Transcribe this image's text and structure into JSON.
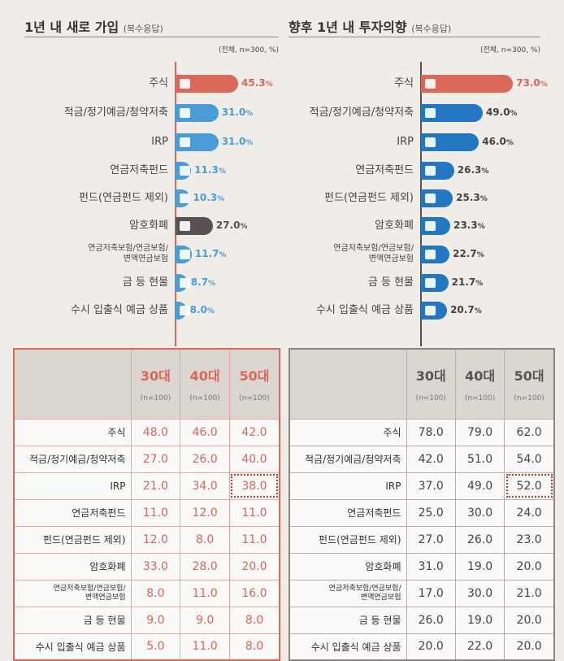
{
  "colors": {
    "red": "#d9675a",
    "blue": "#4a9bd6",
    "dark_blue": "#2377c0",
    "gray": "#5a5252"
  },
  "categories": [
    "주식",
    "적금/정기예금/청약저축",
    "IRP",
    "연금저축펀드",
    "펀드(연금펀드 제외)",
    "암호화폐",
    "연금저축보험/연금보험/ 변액연금보험",
    "금 등 현물",
    "수시 입출식 예금 상품"
  ],
  "icons": [
    "chart-icon",
    "atm-icon",
    "briefcase-icon",
    "document-chart-icon",
    "folder-icon",
    "coin-icon",
    "calculator-icon",
    "gold-bars-icon",
    "piggy-bank-icon"
  ],
  "age_headers": [
    {
      "label": "30대",
      "n": "(n=100)"
    },
    {
      "label": "40대",
      "n": "(n=100)"
    },
    {
      "label": "50대",
      "n": "(n=100)"
    }
  ],
  "chart_data": [
    {
      "type": "bar",
      "orientation": "horizontal",
      "title": "1년 내 새로 가입",
      "subtitle": "(복수응답)",
      "note": "(전체, n=300, %)",
      "unit": "%",
      "values": [
        45.3,
        31.0,
        31.0,
        11.3,
        10.3,
        27.0,
        11.7,
        8.7,
        8.0
      ],
      "table": {
        "30대": [
          48.0,
          27.0,
          21.0,
          11.0,
          12.0,
          33.0,
          8.0,
          9.0,
          5.0
        ],
        "40대": [
          46.0,
          26.0,
          34.0,
          12.0,
          8.0,
          28.0,
          11.0,
          9.0,
          11.0
        ],
        "50대": [
          42.0,
          40.0,
          38.0,
          11.0,
          11.0,
          20.0,
          16.0,
          8.0,
          8.0
        ]
      },
      "highlight": "IRP 50대"
    },
    {
      "type": "bar",
      "orientation": "horizontal",
      "title": "향후 1년 내 투자의향",
      "subtitle": "(복수응답)",
      "note": "(전체, n=300, %)",
      "unit": "%",
      "values": [
        73.0,
        49.0,
        46.0,
        26.3,
        25.3,
        23.3,
        22.7,
        21.7,
        20.7
      ],
      "table": {
        "30대": [
          78.0,
          42.0,
          37.0,
          25.0,
          27.0,
          31.0,
          17.0,
          26.0,
          20.0
        ],
        "40대": [
          79.0,
          51.0,
          49.0,
          30.0,
          26.0,
          19.0,
          30.0,
          19.0,
          22.0
        ],
        "50대": [
          62.0,
          54.0,
          52.0,
          24.0,
          23.0,
          20.0,
          21.0,
          20.0,
          20.0
        ]
      },
      "highlight": "IRP 50대"
    }
  ]
}
